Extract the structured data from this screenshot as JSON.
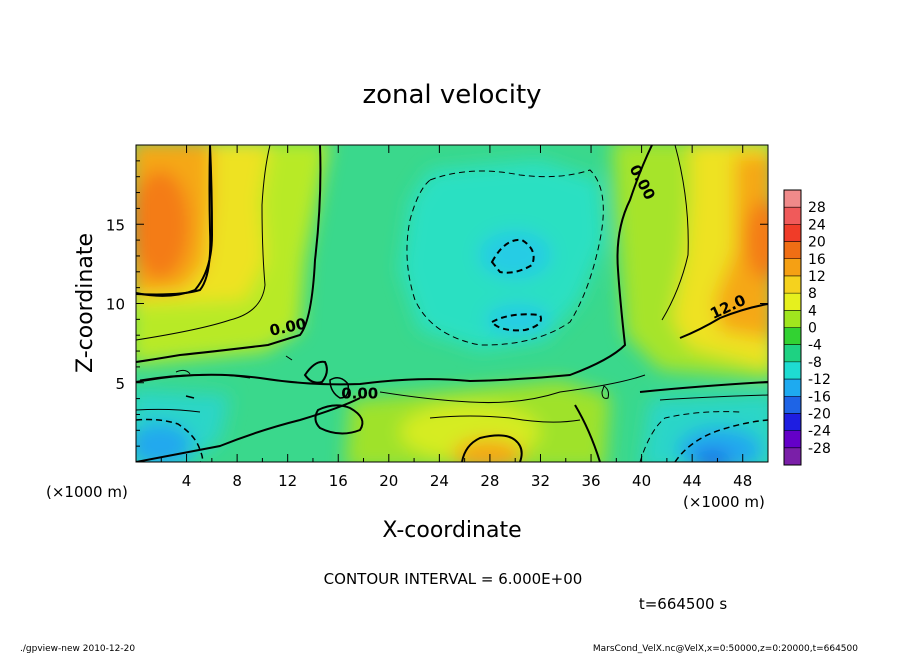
{
  "chart_data": {
    "type": "heatmap",
    "title": "zonal velocity",
    "xlabel": "X-coordinate",
    "ylabel": "Z-coordinate",
    "x_unit_label": "(×1000 m)",
    "y_unit_label": "(×1000 m)",
    "xlim": [
      0,
      50
    ],
    "ylim": [
      0,
      20
    ],
    "x_ticks": [
      4,
      8,
      12,
      16,
      20,
      24,
      28,
      32,
      36,
      40,
      44,
      48
    ],
    "y_ticks": [
      5,
      10,
      15
    ],
    "colorbar": {
      "labels": [
        28,
        24,
        20,
        16,
        12,
        8,
        4,
        0,
        -4,
        -8,
        -12,
        -16,
        -20,
        -24,
        -28
      ],
      "colors": [
        "#f08a8a",
        "#f05a5a",
        "#f03c28",
        "#f06e14",
        "#f5a014",
        "#f5d21e",
        "#e6f01e",
        "#a0e61e",
        "#32d232",
        "#1ed282",
        "#1edcd2",
        "#1eaaf0",
        "#1e64e6",
        "#1e1ee1",
        "#6400c8",
        "#7a1fa8"
      ]
    },
    "contour_labels": [
      {
        "text": "0.00",
        "x": 12.1,
        "z": 8.2
      },
      {
        "text": "0.00",
        "x": 17.7,
        "z": 4.0
      },
      {
        "text": "0.00",
        "x": 39.7,
        "z": 17.5
      },
      {
        "text": "12.0",
        "x": 47.0,
        "z": 9.5
      }
    ],
    "contour_interval": "CONTOUR INTERVAL = 6.000E+00",
    "time": "t=664500 s",
    "footer_left": "./gpview-new  2010-12-20",
    "footer_right": "MarsCond_VelX.nc@VelX,x=0:50000,z=0:20000,t=664500",
    "field_regions": [
      {
        "level": 16,
        "x": 2.5,
        "z": 15
      },
      {
        "level": 12,
        "x": 45,
        "z": 11
      },
      {
        "level": -8,
        "x": 29,
        "z": 12
      },
      {
        "level": -12,
        "x": 29.5,
        "z": 12.5
      },
      {
        "level": -16,
        "x": 45,
        "z": 1.5
      },
      {
        "level": -12,
        "x": 1.5,
        "z": 1.5
      },
      {
        "level": 12,
        "x": 29,
        "z": 1
      }
    ]
  }
}
